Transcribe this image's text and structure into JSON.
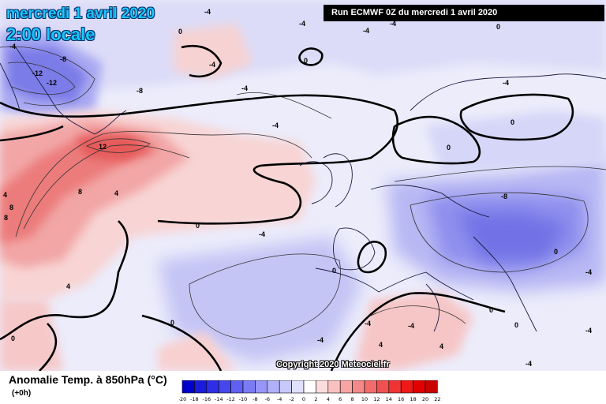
{
  "header": {
    "date_title": "mercredi 1 avril 2020",
    "time_title": "2:00 locale",
    "run_info": "Run ECMWF 0Z du mercredi 1 avril 2020"
  },
  "footer": {
    "variable_title": "Anomalie Temp. à 850hPa (°C)",
    "lead_time": "(+0h)",
    "copyright": "Copyright 2020 Meteociel.fr"
  },
  "legend": {
    "ticks": [
      "-20",
      "-18",
      "-16",
      "-14",
      "-12",
      "-10",
      "-8",
      "-6",
      "-4",
      "-2",
      "0",
      "2",
      "4",
      "6",
      "8",
      "10",
      "12",
      "14",
      "16",
      "18",
      "20",
      "22"
    ],
    "colors": [
      "#0000cc",
      "#1b1bdc",
      "#2e2ee6",
      "#4646ee",
      "#6060f2",
      "#7b7bf4",
      "#9696f6",
      "#b0b0f8",
      "#c8c8fa",
      "#e0e0fc",
      "#ffffff",
      "#fbdcdc",
      "#f9c0c0",
      "#f7a4a4",
      "#f58888",
      "#f36c6c",
      "#f15050",
      "#ef3434",
      "#ed1818",
      "#e00000",
      "#c80000"
    ]
  },
  "contour_labels": [
    "-4",
    "0",
    "-4",
    "-4",
    "-4",
    "-8",
    "-12",
    "-12",
    "-8",
    "-4",
    "-4",
    "0",
    "-4",
    "0",
    "4",
    "12",
    "8",
    "4",
    "8",
    "8",
    "4",
    "0",
    "0",
    "-4",
    "-4",
    "0",
    "0",
    "-8",
    "0",
    "-4",
    "-4",
    "0",
    "0",
    "4",
    "-4",
    "-4",
    "-4",
    "0",
    "4",
    "-4",
    "-4",
    "0"
  ],
  "map": {
    "ocean_color": "#e8e8fb",
    "cold_anomaly_color": "#7a7ae8",
    "warm_anomaly_color": "#f06060"
  }
}
